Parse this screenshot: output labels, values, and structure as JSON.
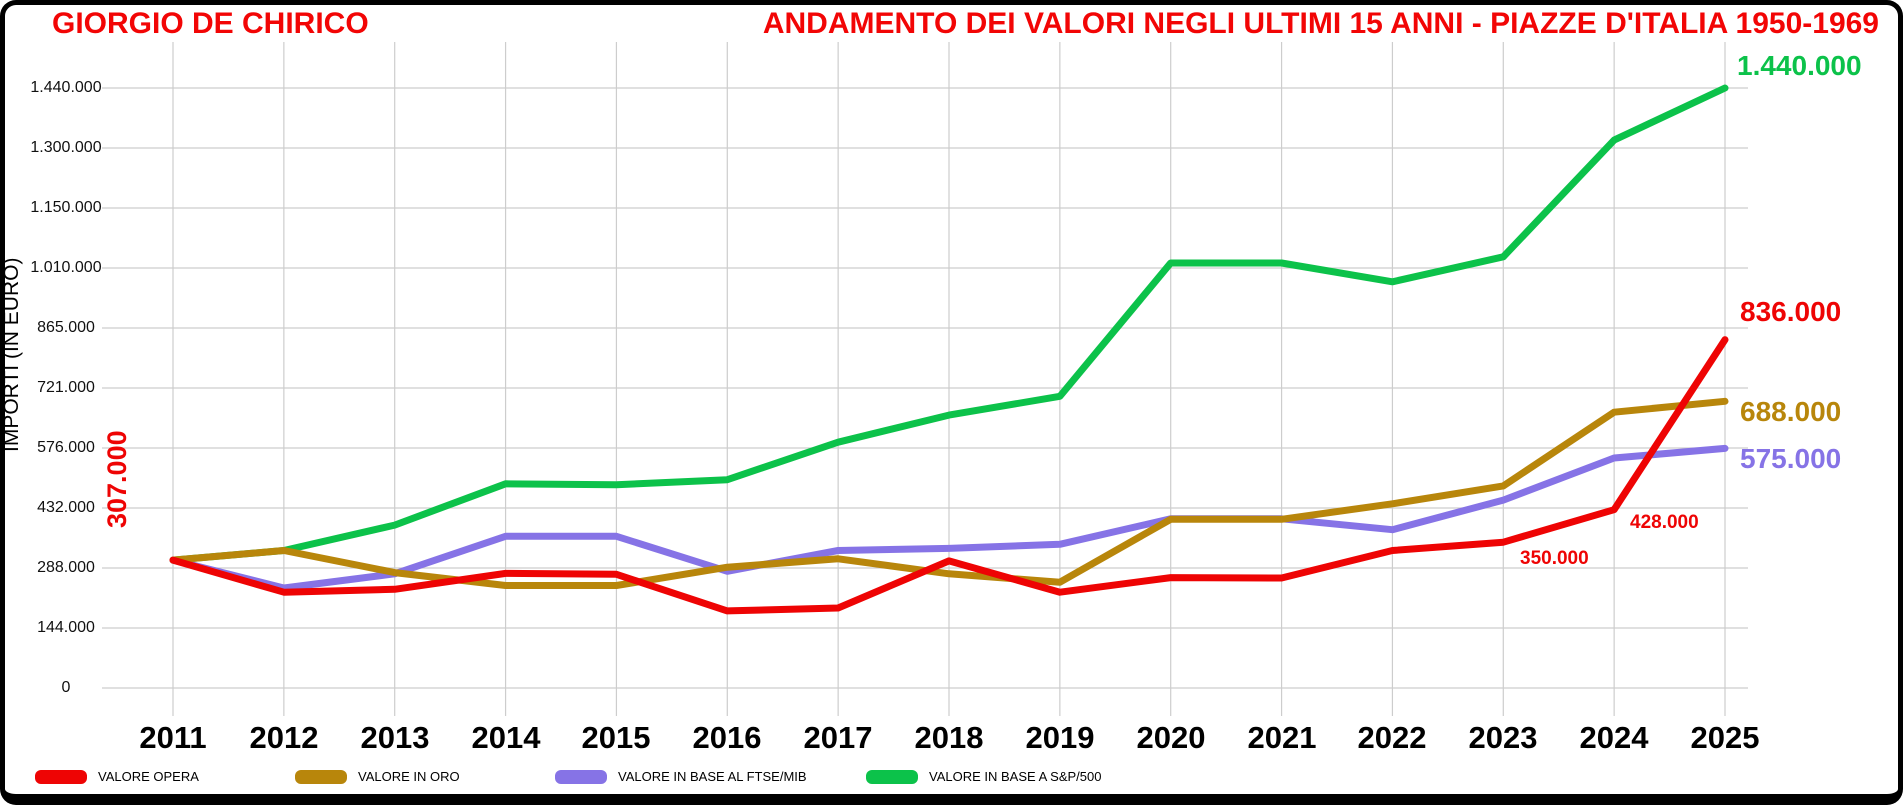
{
  "header": {
    "artist": "GIORGIO DE CHIRICO",
    "title": "ANDAMENTO DEI VALORI NEGLI ULTIMI 15 ANNI - PIAZZE D'ITALIA 1950-1969",
    "title_color": "#f20505"
  },
  "y_axis": {
    "title": "IMPORTI (IN EURO)",
    "ticks": [
      "0",
      "144.000",
      "288.000",
      "432.000",
      "576.000",
      "721.000",
      "865.000",
      "1.010.000",
      "1.150.000",
      "1.300.000",
      "1.440.000"
    ]
  },
  "x_axis": {
    "years": [
      "2011",
      "2012",
      "2013",
      "2014",
      "2015",
      "2016",
      "2017",
      "2018",
      "2019",
      "2020",
      "2021",
      "2022",
      "2023",
      "2024",
      "2025"
    ]
  },
  "legend": [
    {
      "label": "VALORE OPERA",
      "color": "#ee0404"
    },
    {
      "label": "VALORE IN ORO",
      "color": "#b8860b"
    },
    {
      "label": "VALORE IN BASE AL FTSE/MIB",
      "color": "#8673e6"
    },
    {
      "label": "VALORE IN BASE A S&P/500",
      "color": "#0cc24a"
    }
  ],
  "annotations": {
    "start_value": {
      "text": "307.000",
      "color": "#ee0404"
    },
    "red_2023": {
      "text": "350.000",
      "color": "#ee0404"
    },
    "red_2024": {
      "text": "428.000",
      "color": "#ee0404"
    },
    "red_end": {
      "text": "836.000",
      "color": "#ee0404"
    },
    "gold_end": {
      "text": "688.000",
      "color": "#b8860b"
    },
    "purple_end": {
      "text": "575.000",
      "color": "#8673e6"
    },
    "green_end": {
      "text": "1.440.000",
      "color": "#0cc24a"
    }
  },
  "chart_data": {
    "type": "line",
    "title": "ANDAMENTO DEI VALORI NEGLI ULTIMI 15 ANNI - PIAZZE D'ITALIA 1950-1969",
    "xlabel": "",
    "ylabel": "IMPORTI (IN EURO)",
    "x": [
      2011,
      2012,
      2013,
      2014,
      2015,
      2016,
      2017,
      2018,
      2019,
      2020,
      2021,
      2022,
      2023,
      2024,
      2025
    ],
    "ylim": [
      0,
      1440000
    ],
    "y_ticks": [
      0,
      144000,
      288000,
      432000,
      576000,
      721000,
      865000,
      1010000,
      1150000,
      1300000,
      1440000
    ],
    "grid": true,
    "grid_color": "#cdcdcd",
    "legend_position": "bottom",
    "series": [
      {
        "name": "VALORE OPERA",
        "color": "#ee0404",
        "values": [
          307000,
          230000,
          237000,
          275000,
          273000,
          185000,
          192000,
          305000,
          230000,
          265000,
          264000,
          330000,
          350000,
          428000,
          836000
        ]
      },
      {
        "name": "VALORE IN ORO",
        "color": "#b8860b",
        "values": [
          307000,
          330000,
          277000,
          246000,
          246000,
          290000,
          310000,
          274000,
          254000,
          405000,
          405000,
          442000,
          485000,
          662000,
          688000
        ]
      },
      {
        "name": "VALORE IN BASE AL FTSE/MIB",
        "color": "#8673e6",
        "values": [
          307000,
          240000,
          274000,
          364000,
          364000,
          280000,
          330000,
          335000,
          345000,
          406000,
          406000,
          380000,
          451000,
          552000,
          575000
        ]
      },
      {
        "name": "VALORE IN BASE A S&P/500",
        "color": "#0cc24a",
        "values": [
          307000,
          330000,
          391000,
          490000,
          488000,
          500000,
          590000,
          655000,
          700000,
          1020000,
          1020000,
          975000,
          1035000,
          1315000,
          1440000
        ]
      }
    ]
  }
}
